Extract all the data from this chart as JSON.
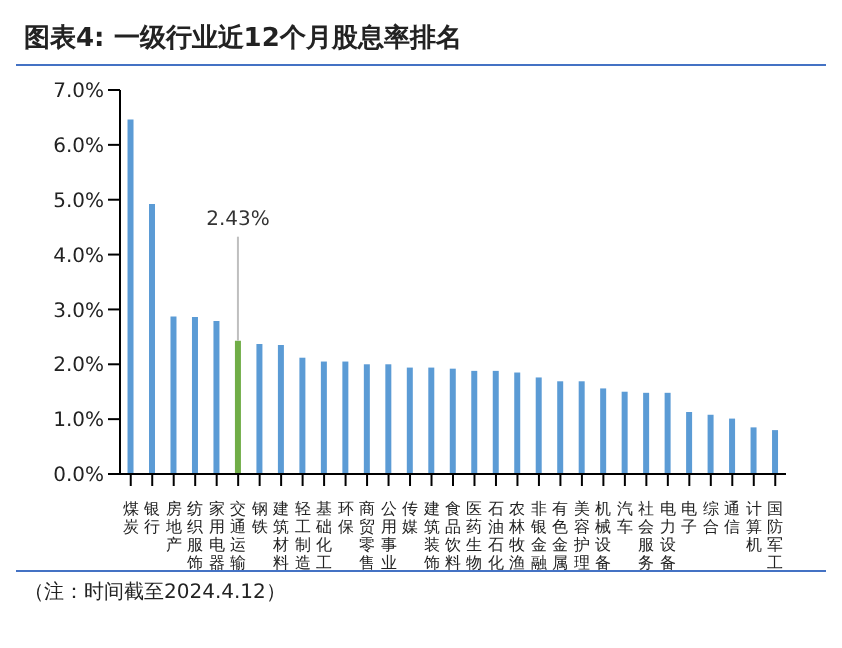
{
  "chart_data": {
    "type": "bar",
    "title": "图表4:  一级行业近12个月股息率排名",
    "categories": [
      "煤炭",
      "银行",
      "房地产",
      "纺织服饰",
      "家用电器",
      "交通运输",
      "钢铁",
      "建筑材料",
      "轻工制造",
      "基础化工",
      "环保",
      "商贸零售",
      "公用事业",
      "传媒",
      "建筑装饰",
      "食品饮料",
      "医药生物",
      "石油石化",
      "农林牧渔",
      "非银金融",
      "有色金属",
      "美容护理",
      "机械设备",
      "汽车",
      "社会服务",
      "电力设备",
      "电子",
      "综合",
      "通信",
      "计算机",
      "国防军工"
    ],
    "values": [
      6.46,
      4.92,
      2.87,
      2.86,
      2.79,
      2.43,
      2.37,
      2.35,
      2.12,
      2.05,
      2.05,
      2.0,
      2.0,
      1.94,
      1.94,
      1.92,
      1.88,
      1.88,
      1.85,
      1.76,
      1.69,
      1.69,
      1.56,
      1.5,
      1.48,
      1.48,
      1.13,
      1.08,
      1.01,
      0.85,
      0.8
    ],
    "colors": [
      "#5b9bd5",
      "#5b9bd5",
      "#5b9bd5",
      "#5b9bd5",
      "#5b9bd5",
      "#70ad47",
      "#5b9bd5",
      "#5b9bd5",
      "#5b9bd5",
      "#5b9bd5",
      "#5b9bd5",
      "#5b9bd5",
      "#5b9bd5",
      "#5b9bd5",
      "#5b9bd5",
      "#5b9bd5",
      "#5b9bd5",
      "#5b9bd5",
      "#5b9bd5",
      "#5b9bd5",
      "#5b9bd5",
      "#5b9bd5",
      "#5b9bd5",
      "#5b9bd5",
      "#5b9bd5",
      "#5b9bd5",
      "#5b9bd5",
      "#5b9bd5",
      "#5b9bd5",
      "#5b9bd5",
      "#5b9bd5"
    ],
    "value_labels": [
      null,
      null,
      null,
      null,
      null,
      "2.43%",
      null,
      null,
      null,
      null,
      null,
      null,
      null,
      null,
      null,
      null,
      null,
      null,
      null,
      null,
      null,
      null,
      null,
      null,
      null,
      null,
      null,
      null,
      null,
      null,
      null
    ],
    "ylim": [
      0,
      7
    ],
    "yticks": [
      {
        "value": 0,
        "label": "0.0%"
      },
      {
        "value": 1,
        "label": "1.0%"
      },
      {
        "value": 2,
        "label": "2.0%"
      },
      {
        "value": 3,
        "label": "3.0%"
      },
      {
        "value": 4,
        "label": "4.0%"
      },
      {
        "value": 5,
        "label": "5.0%"
      },
      {
        "value": 6,
        "label": "6.0%"
      },
      {
        "value": 7,
        "label": "7.0%"
      }
    ],
    "grid": false,
    "annotations": [
      "（注：时间截至2024.4.12）"
    ]
  }
}
